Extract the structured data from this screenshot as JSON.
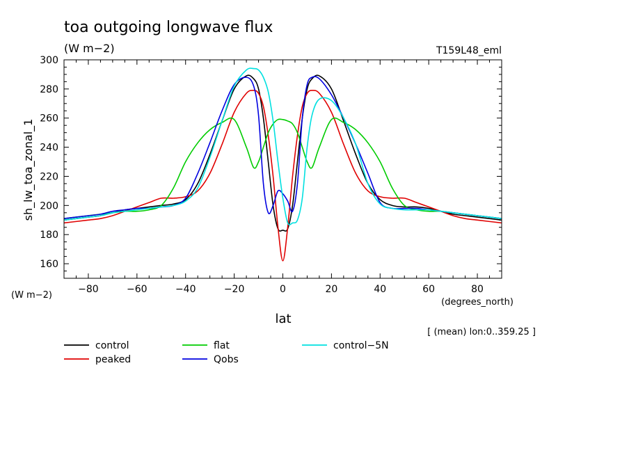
{
  "chart_data": {
    "type": "line",
    "title": "toa outgoing longwave flux",
    "units": "(W m−2)",
    "experiment": "T159L48_eml",
    "ylabel": "sh_lw_toa_zonal_1",
    "yunits": "(W m−2)",
    "xlabel": "lat",
    "xunits": "(degrees_north)",
    "note": "[ (mean) lon:0..359.25 ]",
    "xlim": [
      -90,
      90
    ],
    "ylim": [
      150,
      300
    ],
    "xticks": [
      -80,
      -60,
      -40,
      -20,
      0,
      20,
      40,
      60,
      80
    ],
    "yticks": [
      160,
      180,
      200,
      220,
      240,
      260,
      280,
      300
    ],
    "x": [
      -90,
      -85,
      -80,
      -75,
      -70,
      -65,
      -60,
      -55,
      -50,
      -45,
      -40,
      -35,
      -30,
      -25,
      -20,
      -15,
      -12,
      -10,
      -8,
      -6,
      -4,
      -2,
      0,
      2,
      4,
      6,
      8,
      10,
      12,
      15,
      20,
      25,
      30,
      35,
      40,
      45,
      50,
      55,
      60,
      65,
      70,
      75,
      80,
      85,
      90
    ],
    "series": [
      {
        "name": "control",
        "color": "#000000",
        "values": [
          190,
          191,
          192,
          193,
          195,
          197,
          198,
          199,
          200,
          201,
          204,
          215,
          235,
          258,
          280,
          289,
          287,
          280,
          260,
          230,
          200,
          184,
          183,
          184,
          200,
          230,
          260,
          280,
          287,
          289,
          280,
          258,
          235,
          215,
          204,
          200,
          199,
          199,
          198,
          196,
          194,
          193,
          192,
          191,
          190
        ]
      },
      {
        "name": "peaked",
        "color": "#e00000",
        "values": [
          188,
          189,
          190,
          191,
          193,
          196,
          199,
          202,
          205,
          205,
          206,
          210,
          222,
          242,
          264,
          277,
          279,
          277,
          268,
          248,
          220,
          185,
          162,
          185,
          220,
          248,
          268,
          277,
          279,
          277,
          264,
          242,
          222,
          210,
          206,
          205,
          205,
          202,
          199,
          196,
          193,
          191,
          190,
          189,
          188
        ]
      },
      {
        "name": "flat",
        "color": "#00cc00",
        "values": [
          191,
          192,
          193,
          194,
          195,
          196,
          196,
          197,
          200,
          212,
          230,
          243,
          252,
          257,
          259,
          240,
          226,
          230,
          240,
          250,
          256,
          259,
          259,
          258,
          256,
          250,
          240,
          230,
          226,
          240,
          259,
          257,
          252,
          243,
          230,
          212,
          200,
          197,
          196,
          196,
          195,
          194,
          193,
          192,
          191
        ]
      },
      {
        "name": "Qobs",
        "color": "#0000e0",
        "values": [
          191,
          192,
          193,
          194,
          196,
          197,
          198,
          198,
          199,
          200,
          205,
          222,
          243,
          265,
          283,
          288,
          282,
          262,
          215,
          195,
          200,
          210,
          208,
          203,
          196,
          215,
          260,
          283,
          288,
          287,
          276,
          260,
          242,
          222,
          202,
          198,
          198,
          198,
          197,
          196,
          195,
          194,
          193,
          192,
          191
        ]
      },
      {
        "name": "control−5N",
        "color": "#00e0e0",
        "values": [
          190,
          191,
          192,
          193,
          195,
          196,
          197,
          198,
          199,
          200,
          203,
          212,
          233,
          258,
          282,
          293,
          294,
          293,
          288,
          278,
          258,
          230,
          205,
          188,
          188,
          190,
          205,
          240,
          262,
          273,
          272,
          260,
          242,
          215,
          201,
          198,
          197,
          197,
          197,
          196,
          195,
          194,
          193,
          192,
          191
        ]
      }
    ]
  }
}
